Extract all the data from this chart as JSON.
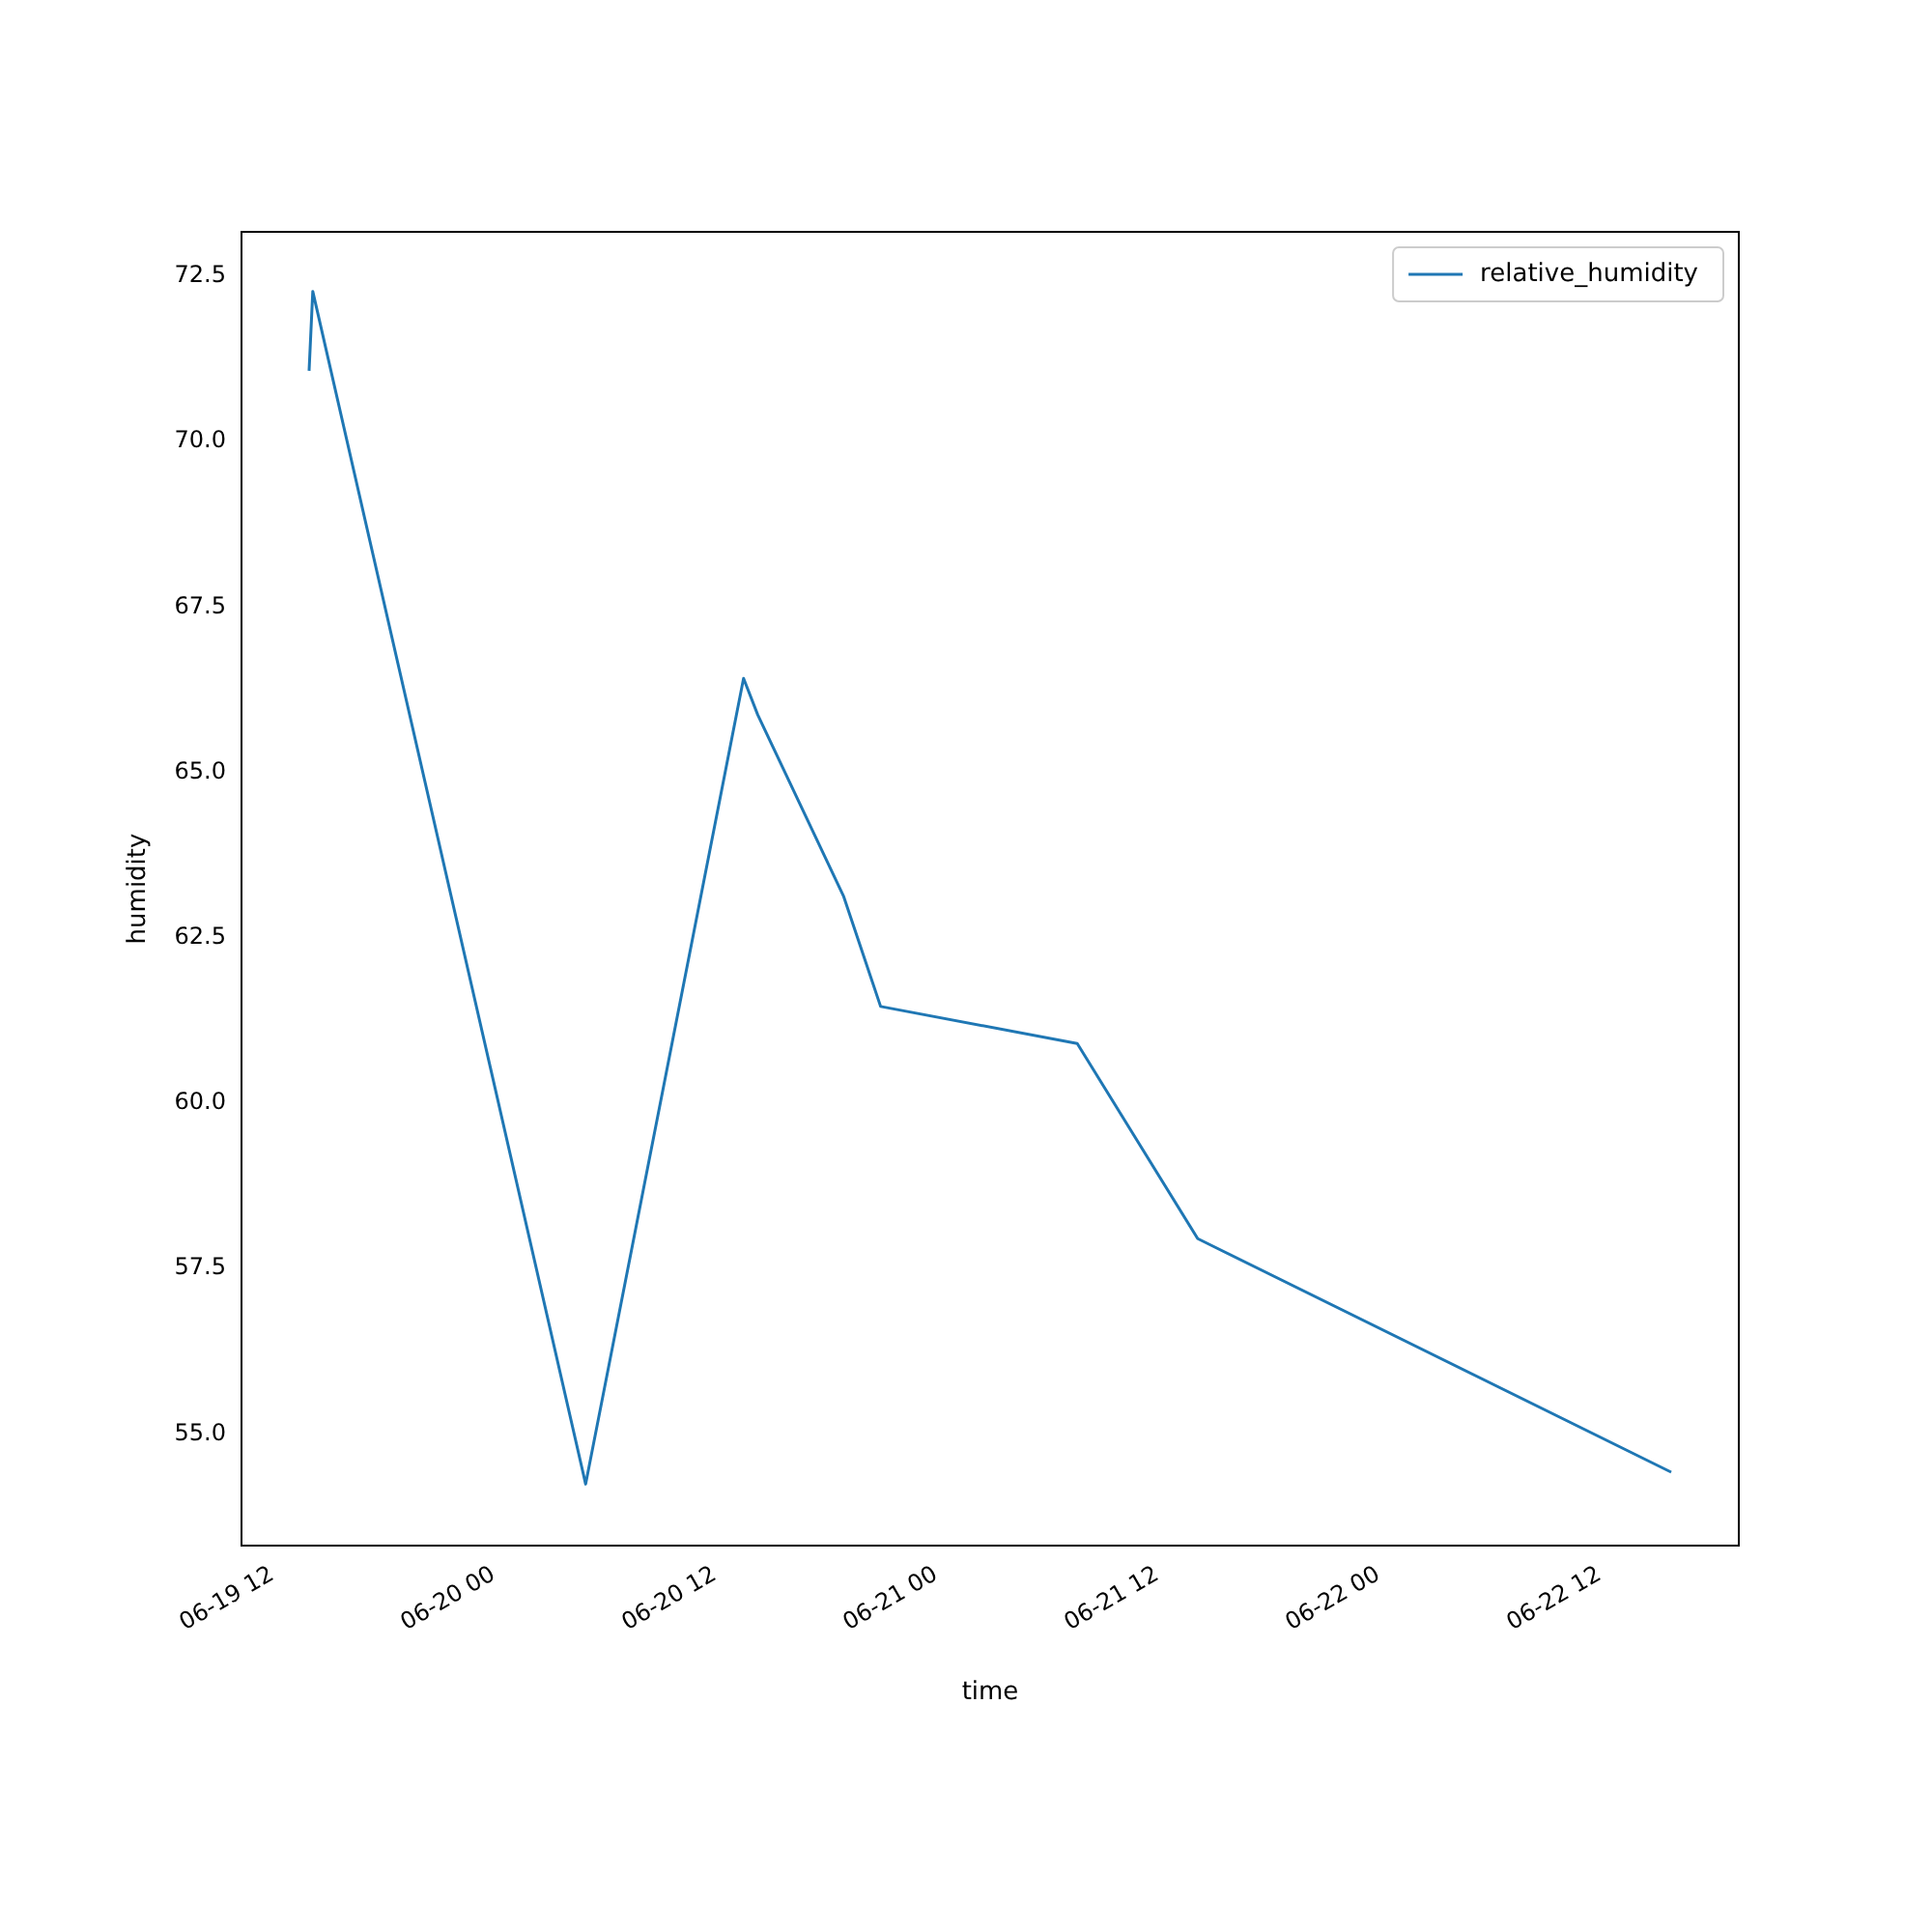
{
  "chart_data": {
    "type": "line",
    "xlabel": "time",
    "ylabel": "humidity",
    "x": [
      "--06-19T14:00",
      "--06-19T14:12",
      "--06-20T05:00",
      "--06-20T13:34",
      "--06-20T14:20",
      "--06-20T19:00",
      "--06-20T21:00",
      "--06-21T07:40",
      "--06-21T14:12",
      "--06-22T15:53"
    ],
    "series": [
      {
        "name": "relative_humidity",
        "color": "#1f77b4",
        "values": [
          71.07,
          72.27,
          54.24,
          66.42,
          65.87,
          63.12,
          61.46,
          60.9,
          57.95,
          54.42
        ]
      }
    ],
    "xlim": [
      "--06-19T10:20",
      "--06-22T19:33"
    ],
    "xticks": [
      {
        "value": "--06-19T12:00",
        "label": "06-19 12"
      },
      {
        "value": "--06-20T00:00",
        "label": "06-20 00"
      },
      {
        "value": "--06-20T12:00",
        "label": "06-20 12"
      },
      {
        "value": "--06-21T00:00",
        "label": "06-21 00"
      },
      {
        "value": "--06-21T12:00",
        "label": "06-21 12"
      },
      {
        "value": "--06-22T00:00",
        "label": "06-22 00"
      },
      {
        "value": "--06-22T12:00",
        "label": "06-22 12"
      }
    ],
    "ylim": [
      53.31,
      73.17
    ],
    "yticks": [
      {
        "value": 55,
        "label": "55.0"
      },
      {
        "value": 57.5,
        "label": "57.5"
      },
      {
        "value": 60,
        "label": "60.0"
      },
      {
        "value": 62.5,
        "label": "62.5"
      },
      {
        "value": 65,
        "label": "65.0"
      },
      {
        "value": 67.5,
        "label": "67.5"
      },
      {
        "value": 70,
        "label": "70.0"
      },
      {
        "value": 72.5,
        "label": "72.5"
      }
    ],
    "grid": false,
    "legend": "top right",
    "marker": "none",
    "line_style": "solid"
  }
}
